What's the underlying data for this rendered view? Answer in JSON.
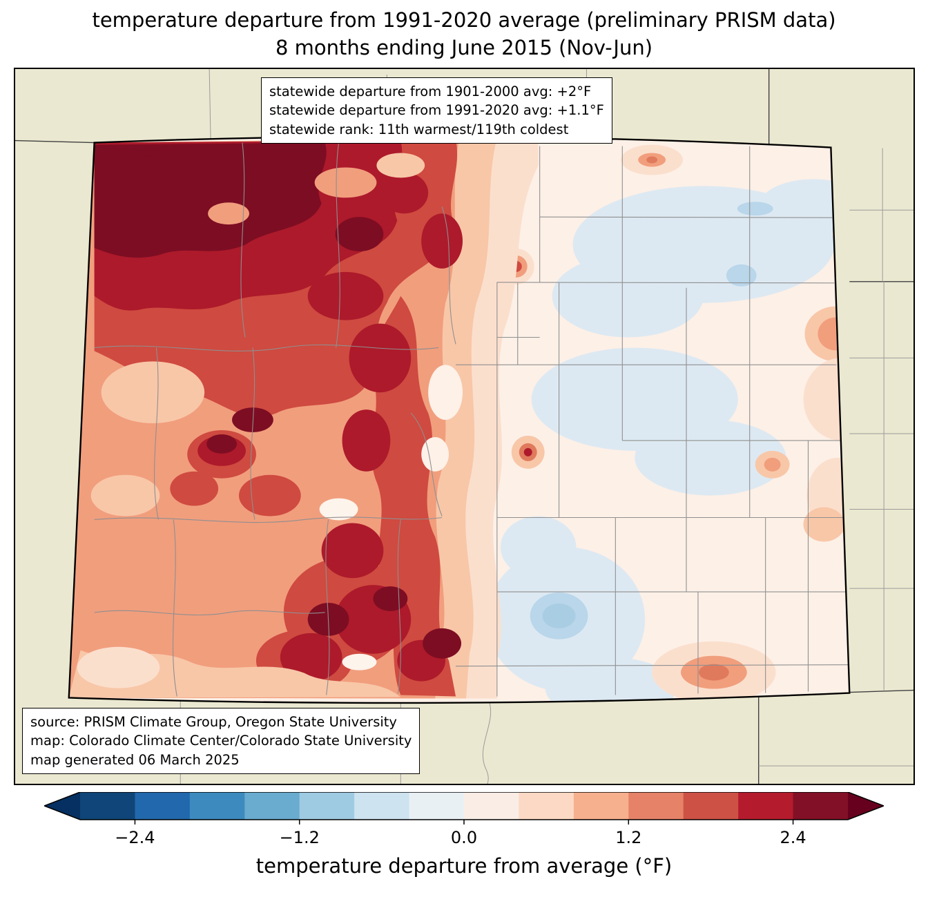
{
  "title": {
    "line1": "temperature departure from 1991-2020 average (preliminary PRISM data)",
    "line2": "8 months ending June 2015 (Nov-Jun)"
  },
  "stats_box": {
    "lines": [
      "statewide departure from 1901-2000 avg: +2°F",
      "statewide departure from 1991-2020 avg: +1.1°F",
      "statewide rank: 11th warmest/119th coldest"
    ]
  },
  "source_box": {
    "lines": [
      "source: PRISM Climate Group, Oregon State University",
      "map: Colorado Climate Center/Colorado State University",
      "map generated 06 March 2025"
    ]
  },
  "colorbar": {
    "label": "temperature departure from average (°F)",
    "range": [
      -2.8,
      2.8
    ],
    "ticks": [
      {
        "label": "−2.4",
        "value": -2.4
      },
      {
        "label": "−1.2",
        "value": -1.2
      },
      {
        "label": "0.0",
        "value": 0.0
      },
      {
        "label": "1.2",
        "value": 1.2
      },
      {
        "label": "2.4",
        "value": 2.4
      }
    ],
    "segments": [
      "#0f4578",
      "#2268ad",
      "#3d8bbe",
      "#6aacd0",
      "#9fcbe2",
      "#cde3ef",
      "#e9f0f4",
      "#f9ede6",
      "#fcd9c4",
      "#f6b08d",
      "#e58268",
      "#ce5146",
      "#b41c2d",
      "#821027"
    ],
    "under_color": "#053061",
    "over_color": "#67001f",
    "outline_color": "#000000"
  },
  "map": {
    "region": "Colorado",
    "background_color": "#ebe8d1",
    "state_border_color": "#000000",
    "county_line_color": "#8f8f8f"
  }
}
